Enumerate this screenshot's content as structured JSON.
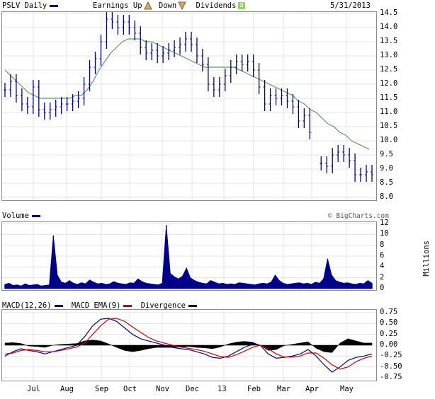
{
  "header": {
    "symbol_label": "PSLV Daily",
    "earnings_label": "Earnings",
    "up_label": "Up",
    "down_label": "Down",
    "dividends_label": "Dividends",
    "date": "5/31/2013",
    "price_series_color": "#00008b",
    "up_icon": "triangle-up-icon",
    "down_icon": "triangle-down-icon",
    "dividend_icon": "dividend-d-icon",
    "dividend_icon_letter": "D"
  },
  "volume_header": {
    "label": "Volume",
    "watermark": "© BigCharts.com",
    "units": "Millions"
  },
  "macd_header": {
    "macd_label": "MACD(12,26)",
    "ema_label": "MACD EMA(9)",
    "divergence_label": "Divergence"
  },
  "chart_data": [
    {
      "type": "ohlc",
      "title": "PSLV Daily",
      "x_labels": [
        "Jul",
        "Aug",
        "Sep",
        "Oct",
        "Nov",
        "Dec",
        "13",
        "Feb",
        "Mar",
        "Apr",
        "May"
      ],
      "y_ticks": [
        "8.0",
        "8.5",
        "9.0",
        "9.5",
        "10.0",
        "10.5",
        "11.0",
        "11.5",
        "12.0",
        "12.5",
        "13.0",
        "13.5",
        "14.0",
        "14.5"
      ],
      "ylim": [
        8.0,
        14.5
      ],
      "grid": true,
      "series": [
        {
          "name": "close",
          "color": "#00008b",
          "values": [
            11.8,
            12.1,
            11.6,
            11.3,
            11.2,
            11.9,
            11.1,
            11.0,
            11.1,
            11.2,
            11.3,
            11.3,
            11.4,
            11.5,
            12.0,
            12.6,
            12.9,
            13.5,
            14.3,
            14.2,
            14.0,
            14.2,
            14.0,
            13.8,
            13.3,
            13.1,
            13.2,
            13.0,
            13.1,
            13.2,
            13.3,
            13.4,
            13.6,
            13.4,
            13.0,
            12.7,
            12.0,
            11.8,
            12.0,
            12.3,
            12.6,
            12.8,
            12.7,
            12.8,
            12.5,
            11.9,
            11.3,
            11.6,
            11.5,
            11.6,
            11.4,
            11.2,
            10.7,
            10.9,
            10.3,
            null,
            9.2,
            9.1,
            9.5,
            9.6,
            9.5,
            9.3,
            8.8,
            8.8,
            8.9,
            8.8
          ]
        },
        {
          "name": "50-day moving average",
          "color": "#5a9a5a",
          "values": [
            12.5,
            12.3,
            12.1,
            11.9,
            11.7,
            11.6,
            11.5,
            11.5,
            11.5,
            11.5,
            11.5,
            11.5,
            11.6,
            11.6,
            11.8,
            12.1,
            12.5,
            12.8,
            13.1,
            13.3,
            13.5,
            13.6,
            13.6,
            13.6,
            13.5,
            13.5,
            13.4,
            13.3,
            13.2,
            13.1,
            13.0,
            12.9,
            12.8,
            12.7,
            12.6,
            12.6,
            12.6,
            12.6,
            12.6,
            12.6,
            12.5,
            12.4,
            12.3,
            12.2,
            12.1,
            12.0,
            11.9,
            11.8,
            11.7,
            11.6,
            11.4,
            11.3,
            11.1,
            11.0,
            10.8,
            10.6,
            10.5,
            10.3,
            10.2,
            10.0,
            9.9,
            9.8,
            9.7
          ]
        }
      ]
    },
    {
      "type": "bar",
      "title": "Volume",
      "ylabel": "Millions",
      "y_ticks": [
        "0",
        "2",
        "4",
        "6",
        "8",
        "10",
        "12"
      ],
      "ylim": [
        0,
        12
      ],
      "series": [
        {
          "name": "Volume",
          "color": "#00008b",
          "values": [
            0.8,
            1.0,
            0.6,
            0.7,
            0.5,
            0.9,
            0.6,
            0.7,
            0.8,
            0.5,
            0.6,
            0.7,
            9.8,
            2.5,
            1.2,
            1.0,
            1.5,
            1.0,
            0.8,
            1.1,
            0.9,
            1.6,
            1.2,
            0.9,
            1.0,
            0.8,
            0.9,
            1.3,
            1.0,
            0.9,
            0.8,
            1.1,
            1.0,
            1.8,
            1.3,
            1.0,
            0.9,
            0.8,
            0.7,
            1.0,
            11.7,
            2.8,
            2.2,
            1.8,
            2.3,
            3.8,
            2.0,
            1.5,
            1.2,
            1.0,
            0.9,
            1.5,
            1.2,
            0.9,
            1.0,
            0.8,
            0.9,
            0.8,
            1.1,
            1.0,
            0.9,
            0.8,
            0.7,
            0.9,
            1.0,
            0.9,
            1.2,
            2.5,
            1.5,
            1.0,
            0.8,
            0.9,
            1.0,
            1.1,
            0.9,
            1.0,
            0.8,
            1.2,
            1.0,
            1.8,
            5.5,
            2.5,
            1.5,
            1.2,
            1.0,
            1.1,
            0.9,
            0.8,
            1.0,
            0.9,
            1.5,
            1.0
          ]
        }
      ]
    },
    {
      "type": "line",
      "title": "MACD(12,26)",
      "y_ticks": [
        "0.75",
        "0.50",
        "0.25",
        "0.00",
        "-0.25",
        "-0.50",
        "-0.75"
      ],
      "ylim": [
        -0.75,
        0.75
      ],
      "series": [
        {
          "name": "MACD(12,26)",
          "color": "#00008b",
          "values": [
            -0.25,
            -0.15,
            -0.08,
            -0.12,
            -0.15,
            -0.2,
            -0.15,
            -0.1,
            -0.05,
            0.0,
            0.2,
            0.45,
            0.6,
            0.62,
            0.55,
            0.4,
            0.25,
            0.15,
            0.1,
            0.05,
            0.0,
            -0.05,
            -0.08,
            -0.1,
            -0.15,
            -0.2,
            -0.28,
            -0.3,
            -0.25,
            -0.15,
            -0.05,
            0.02,
            0.0,
            -0.2,
            -0.3,
            -0.28,
            -0.25,
            -0.2,
            -0.1,
            -0.25,
            -0.45,
            -0.62,
            -0.5,
            -0.35,
            -0.28,
            -0.25,
            -0.2
          ]
        },
        {
          "name": "MACD EMA(9)",
          "color": "#cc0000",
          "values": [
            -0.2,
            -0.18,
            -0.12,
            -0.1,
            -0.12,
            -0.15,
            -0.15,
            -0.12,
            -0.08,
            -0.04,
            0.05,
            0.25,
            0.45,
            0.6,
            0.62,
            0.55,
            0.42,
            0.3,
            0.18,
            0.1,
            0.05,
            0.0,
            -0.04,
            -0.07,
            -0.1,
            -0.14,
            -0.2,
            -0.26,
            -0.28,
            -0.22,
            -0.14,
            -0.05,
            0.0,
            -0.08,
            -0.2,
            -0.27,
            -0.27,
            -0.25,
            -0.18,
            -0.18,
            -0.3,
            -0.45,
            -0.55,
            -0.5,
            -0.38,
            -0.3,
            -0.25
          ]
        },
        {
          "name": "Divergence",
          "color": "#000000",
          "values": [
            0.05,
            0.06,
            0.04,
            -0.02,
            -0.03,
            -0.05,
            0.0,
            0.02,
            0.03,
            0.04,
            0.1,
            0.12,
            0.1,
            0.03,
            -0.05,
            -0.12,
            -0.15,
            -0.12,
            -0.08,
            -0.05,
            -0.05,
            -0.05,
            -0.04,
            -0.03,
            -0.05,
            -0.06,
            -0.08,
            -0.04,
            0.03,
            0.07,
            0.09,
            0.07,
            0.0,
            -0.12,
            -0.1,
            -0.01,
            0.02,
            0.05,
            0.08,
            -0.07,
            -0.15,
            -0.17,
            0.05,
            0.15,
            0.1,
            0.05,
            0.05
          ]
        }
      ]
    }
  ]
}
